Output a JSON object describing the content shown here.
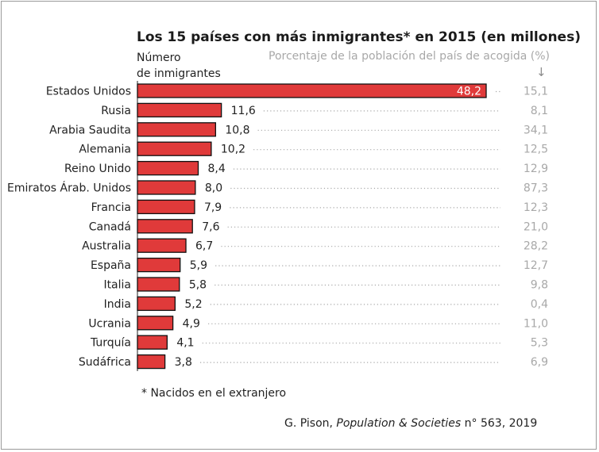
{
  "chart_data": {
    "type": "bar",
    "orientation": "horizontal",
    "title": "Los 15 países con más inmigrantes* en 2015 (en millones)",
    "ylabel": "Número\nde inmigrantes",
    "secondary_label": "Porcentaje de la población del país de acogida (%)",
    "categories": [
      "Estados Unidos",
      "Rusia",
      "Arabia Saudita",
      "Alemania",
      "Reino Unido",
      "Emiratos Árab. Unidos",
      "Francia",
      "Canadá",
      "Australia",
      "España",
      "Italia",
      "India",
      "Ucrania",
      "Turquía",
      "Sudáfrica"
    ],
    "values": [
      48.2,
      11.6,
      10.8,
      10.2,
      8.4,
      8.0,
      7.9,
      7.6,
      6.7,
      5.9,
      5.8,
      5.2,
      4.9,
      4.1,
      3.8
    ],
    "value_labels": [
      "48,2",
      "11,6",
      "10,8",
      "10,2",
      "8,4",
      "8,0",
      "7,9",
      "7,6",
      "6,7",
      "5,9",
      "5,8",
      "5,2",
      "4,9",
      "4,1",
      "3,8"
    ],
    "secondary_values": [
      15.1,
      8.1,
      34.1,
      12.5,
      12.9,
      87.3,
      12.3,
      21.0,
      28.2,
      12.7,
      9.8,
      0.4,
      11.0,
      5.3,
      6.9
    ],
    "secondary_labels": [
      "15,1",
      "8,1",
      "34,1",
      "12,5",
      "12,9",
      "87,3",
      "12,3",
      "21,0",
      "28,2",
      "12,7",
      "9,8",
      "0,4",
      "11,0",
      "5,3",
      "6,9"
    ],
    "bar_color": "#e03a3a",
    "grid": false
  },
  "footnote": "* Nacidos en el extranjero",
  "source": {
    "author": "G. Pison, ",
    "publication": "Population & Societies",
    "rest": " n° 563, 2019"
  },
  "arrow_glyph": "↓"
}
